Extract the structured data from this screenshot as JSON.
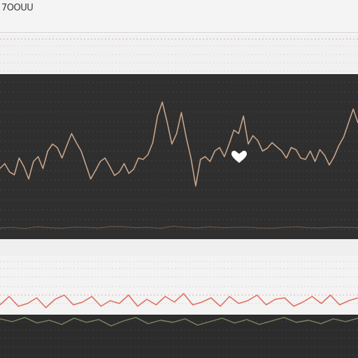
{
  "app": {
    "title": "7OOUU"
  },
  "colors": {
    "panel_bg": "#2f2f2f",
    "signal_main": "#c8a48a",
    "signal_red": "#e07060",
    "signal_green": "#7a8a60",
    "grid_light": "#f4c8c8",
    "grid_dark": "#454545",
    "heart": "#ffffff"
  },
  "icons": {
    "heart": "heart-icon"
  },
  "chart_data": [
    {
      "type": "line",
      "series": [
        {
          "values": [
            45,
            52,
            40,
            36,
            60,
            48,
            30,
            55,
            62,
            45,
            70,
            80,
            75,
            60,
            78,
            95,
            82,
            70,
            50,
            30,
            42,
            55,
            60,
            48,
            35,
            40,
            52,
            38,
            44,
            60,
            58,
            65,
            82,
            120,
            140,
            112,
            80,
            95,
            125,
            90,
            60,
            20,
            58,
            62,
            55,
            70,
            75,
            62,
            80,
            100,
            95,
            120,
            80,
            92,
            85,
            70,
            74,
            82,
            76,
            70,
            60,
            75,
            72,
            60,
            58,
            70,
            55,
            72,
            64,
            50,
            62,
            78,
            90,
            110,
            130,
            110
          ]
        },
        {
          "values": [
            20,
            22,
            18,
            24,
            21,
            19,
            23,
            22,
            20,
            25,
            24,
            21,
            22,
            19,
            26,
            22,
            20,
            24,
            21,
            22,
            23,
            20,
            19,
            22,
            24,
            21,
            20,
            23,
            22,
            21
          ]
        }
      ]
    },
    {
      "type": "line",
      "series": [
        {
          "values": [
            10,
            22,
            8,
            12,
            20,
            6,
            18,
            24,
            10,
            14,
            22,
            8,
            16,
            12,
            24,
            8,
            18,
            10,
            22,
            14,
            26,
            10,
            14,
            20,
            8,
            22,
            12,
            16,
            24,
            10,
            18,
            20,
            8,
            14,
            22,
            12,
            24,
            10,
            16,
            20
          ]
        },
        {
          "values": [
            -4,
            -8,
            -2,
            -10,
            -6,
            -12,
            -3,
            -9,
            -5,
            -14,
            -7,
            -2,
            -11,
            -6,
            -9,
            -4,
            -13,
            -8,
            -3,
            -10,
            -5,
            -12,
            -7,
            -2,
            -9,
            -6,
            -11,
            -4,
            -8,
            -3
          ]
        }
      ]
    }
  ]
}
